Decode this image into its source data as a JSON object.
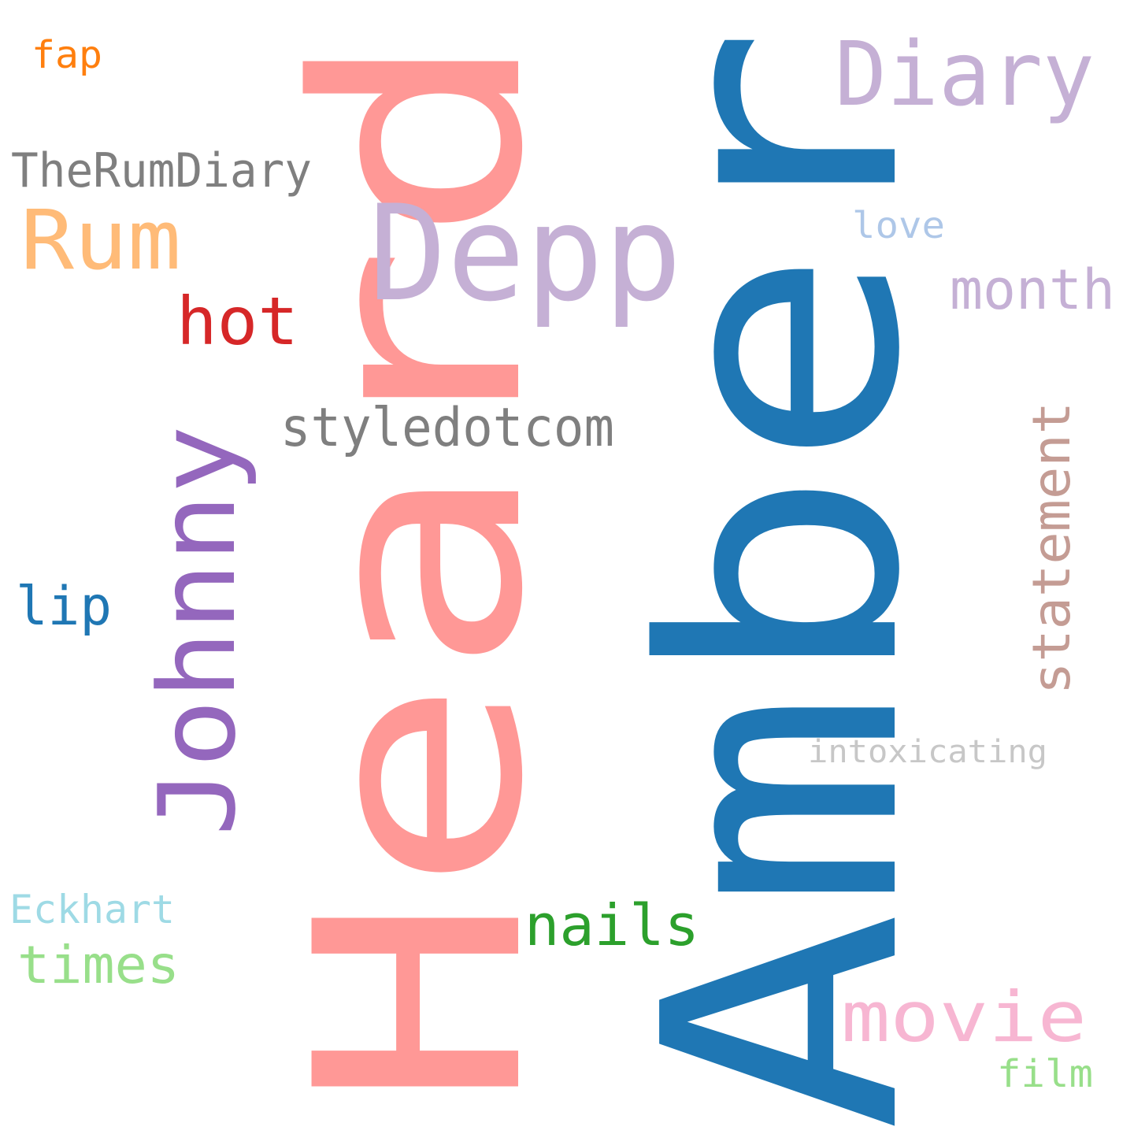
{
  "words": [
    {
      "text": "Amber",
      "color": "#1f77b4"
    },
    {
      "text": "Heard",
      "color": "#ff9896"
    },
    {
      "text": "Depp",
      "color": "#c5b0d5"
    },
    {
      "text": "Diary",
      "color": "#c5b0d5"
    },
    {
      "text": "Johnny",
      "color": "#9467bd"
    },
    {
      "text": "Rum",
      "color": "#ffbb78"
    },
    {
      "text": "styledotcom",
      "color": "#7f7f7f"
    },
    {
      "text": "TheRumDiary",
      "color": "#7f7f7f"
    },
    {
      "text": "hot",
      "color": "#d62728"
    },
    {
      "text": "month",
      "color": "#c5b0d5"
    },
    {
      "text": "statement",
      "color": "#c49c94"
    },
    {
      "text": "movie",
      "color": "#f7b6d2"
    },
    {
      "text": "nails",
      "color": "#2ca02c"
    },
    {
      "text": "times",
      "color": "#98df8a"
    },
    {
      "text": "lip",
      "color": "#1f77b4"
    },
    {
      "text": "Eckhart",
      "color": "#9edae5"
    },
    {
      "text": "intoxicating",
      "color": "#c7c7c7"
    },
    {
      "text": "love",
      "color": "#aec7e8"
    },
    {
      "text": "fap",
      "color": "#ff7f0e"
    },
    {
      "text": "film",
      "color": "#98df8a"
    }
  ]
}
